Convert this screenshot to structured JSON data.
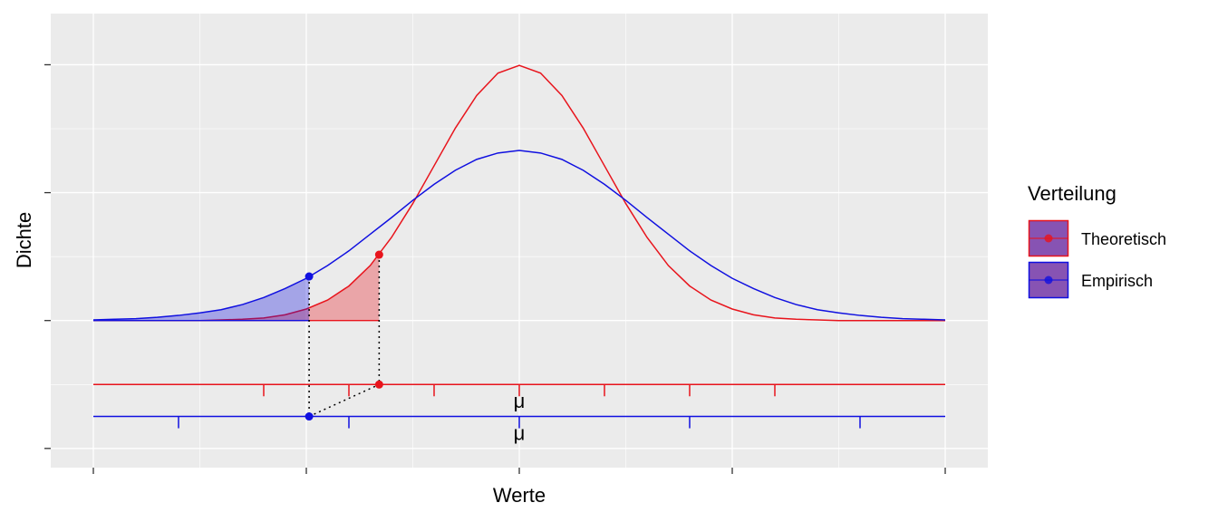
{
  "chart_data": {
    "type": "line",
    "x_label": "Werte",
    "y_label": "Dichte",
    "legend_title": "Verteilung",
    "legend_position": "right",
    "xlim": [
      -5.5,
      5.5
    ],
    "xticks": [
      -5,
      -2.5,
      0,
      2.5,
      5
    ],
    "ylim": [
      -0.23,
      0.48
    ],
    "yticks": [
      -0.2,
      0,
      0.2,
      0.4
    ],
    "grid": true,
    "x": [
      -5,
      -4.75,
      -4.5,
      -4.25,
      -4,
      -3.75,
      -3.5,
      -3.25,
      -3,
      -2.75,
      -2.5,
      -2.25,
      -2,
      -1.75,
      -1.5,
      -1.25,
      -1,
      -0.75,
      -0.5,
      -0.25,
      0,
      0.25,
      0.5,
      0.75,
      1,
      1.25,
      1.5,
      1.75,
      2,
      2.25,
      2.5,
      2.75,
      3,
      3.25,
      3.5,
      3.75,
      4,
      4.25,
      4.5,
      4.75,
      5
    ],
    "series": [
      {
        "name": "Theoretisch",
        "color": "#e8141c",
        "values": [
          0,
          0,
          0,
          0,
          0,
          0,
          0.001,
          0.002,
          0.004,
          0.009,
          0.018,
          0.032,
          0.054,
          0.086,
          0.13,
          0.183,
          0.242,
          0.301,
          0.352,
          0.387,
          0.399,
          0.387,
          0.352,
          0.301,
          0.242,
          0.183,
          0.13,
          0.086,
          0.054,
          0.032,
          0.018,
          0.009,
          0.004,
          0.002,
          0.001,
          0,
          0,
          0,
          0,
          0,
          0
        ],
        "quantile_x": -1.645,
        "quantile_y": 0.103,
        "axis_y": -0.1,
        "axis_ticks": [
          -3,
          -2,
          -1,
          0,
          1,
          2,
          3
        ],
        "mu_label": "μ"
      },
      {
        "name": "Empirisch",
        "color": "#1010e0",
        "values": [
          0.001,
          0.002,
          0.003,
          0.005,
          0.008,
          0.012,
          0.017,
          0.025,
          0.036,
          0.05,
          0.066,
          0.086,
          0.109,
          0.135,
          0.161,
          0.188,
          0.213,
          0.235,
          0.252,
          0.262,
          0.266,
          0.262,
          0.252,
          0.235,
          0.213,
          0.188,
          0.161,
          0.135,
          0.109,
          0.086,
          0.066,
          0.05,
          0.036,
          0.025,
          0.017,
          0.012,
          0.008,
          0.005,
          0.003,
          0.002,
          0.001
        ],
        "quantile_x": -2.467,
        "quantile_y": 0.069,
        "axis_y": -0.15,
        "axis_ticks": [
          -4,
          -2,
          0,
          2,
          4
        ],
        "mu_label": "μ"
      }
    ]
  }
}
